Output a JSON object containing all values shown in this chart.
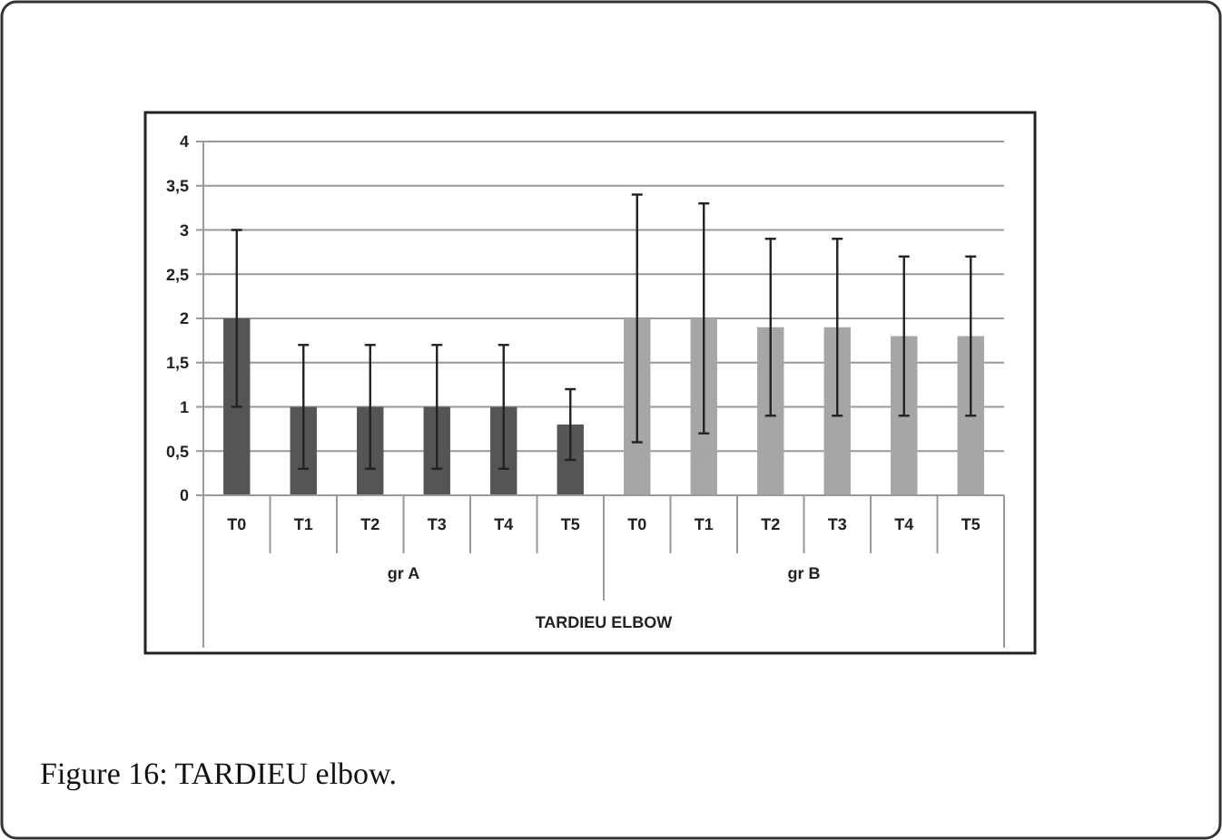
{
  "chart_data": {
    "type": "bar",
    "categories": [
      "T0",
      "T1",
      "T2",
      "T3",
      "T4",
      "T5",
      "T0",
      "T1",
      "T2",
      "T3",
      "T4",
      "T5"
    ],
    "values": [
      2,
      1,
      1,
      1,
      1,
      0.8,
      2,
      2,
      1.9,
      1.9,
      1.8,
      1.8
    ],
    "colors": [
      "#555555",
      "#555555",
      "#555555",
      "#555555",
      "#555555",
      "#555555",
      "#a6a6a6",
      "#a6a6a6",
      "#a6a6a6",
      "#a6a6a6",
      "#a6a6a6",
      "#a6a6a6"
    ],
    "errors": [
      [
        1,
        3
      ],
      [
        0.3,
        1.7
      ],
      [
        0.3,
        1.7
      ],
      [
        0.3,
        1.7
      ],
      [
        0.3,
        1.7
      ],
      [
        0.4,
        1.2
      ],
      [
        0.6,
        3.4
      ],
      [
        0.7,
        3.3
      ],
      [
        0.9,
        2.9
      ],
      [
        0.9,
        2.9
      ],
      [
        0.9,
        2.7
      ],
      [
        0.9,
        2.7
      ]
    ],
    "ylim": [
      0,
      4
    ],
    "yticks": [
      0,
      {
        "value": 0.5,
        "label": "0,5"
      },
      1,
      {
        "value": 1.5,
        "label": "1,5"
      },
      2,
      {
        "value": 2.5,
        "label": "2,5"
      },
      3,
      {
        "value": 3.5,
        "label": "3,5"
      },
      4
    ],
    "grid": "y",
    "xlabel": "TARDIEU ELBOW",
    "annotations": [
      "gr A",
      "gr B",
      "Figure 16: TARDIEU elbow."
    ]
  }
}
